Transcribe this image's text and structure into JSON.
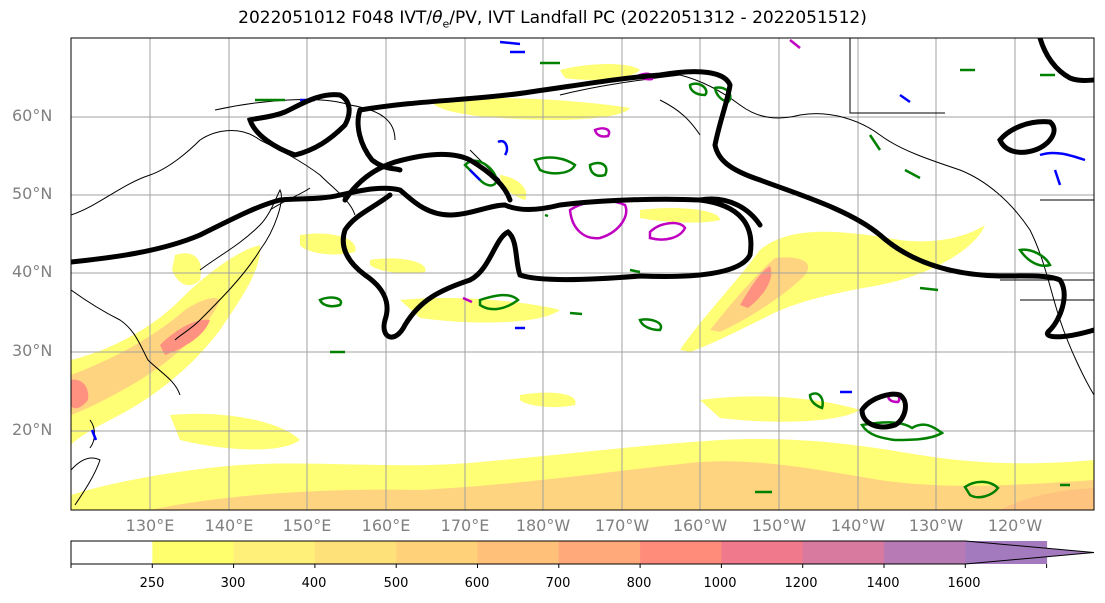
{
  "title": "2022051012 F048 IVT/",
  "title_theta": "θ",
  "title_sub": "e",
  "title_rest": "/PV, IVT Landfall PC (2022051312 - 2022051512)",
  "lat_labels": [
    "60°N",
    "50°N",
    "40°N",
    "30°N",
    "20°N"
  ],
  "lon_labels": [
    "130°E",
    "140°E",
    "150°E",
    "160°E",
    "170°E",
    "180°W",
    "170°W",
    "160°W",
    "150°W",
    "140°W",
    "130°W",
    "120°W"
  ],
  "colorbar": {
    "ticks": [
      "250",
      "300",
      "400",
      "500",
      "600",
      "700",
      "800",
      "1000",
      "1200",
      "1400",
      "1600"
    ],
    "colors": [
      "#ffffff",
      "#ffff6e",
      "#fff07a",
      "#ffe17a",
      "#ffd27a",
      "#ffc07a",
      "#ffa87a",
      "#ff8c7a",
      "#f07a8c",
      "#d87aa0",
      "#b87ab4",
      "#a47abe"
    ]
  },
  "colors": {
    "ivt_low": "#ffff6e",
    "ivt_mid": "#ffd27a",
    "ivt_high": "#ff8c7a",
    "pc_contour": "#000000",
    "green_contour": "#008000",
    "blue_contour": "#0000ff",
    "magenta_contour": "#c000c0",
    "gridline": "#a0a0a0"
  }
}
